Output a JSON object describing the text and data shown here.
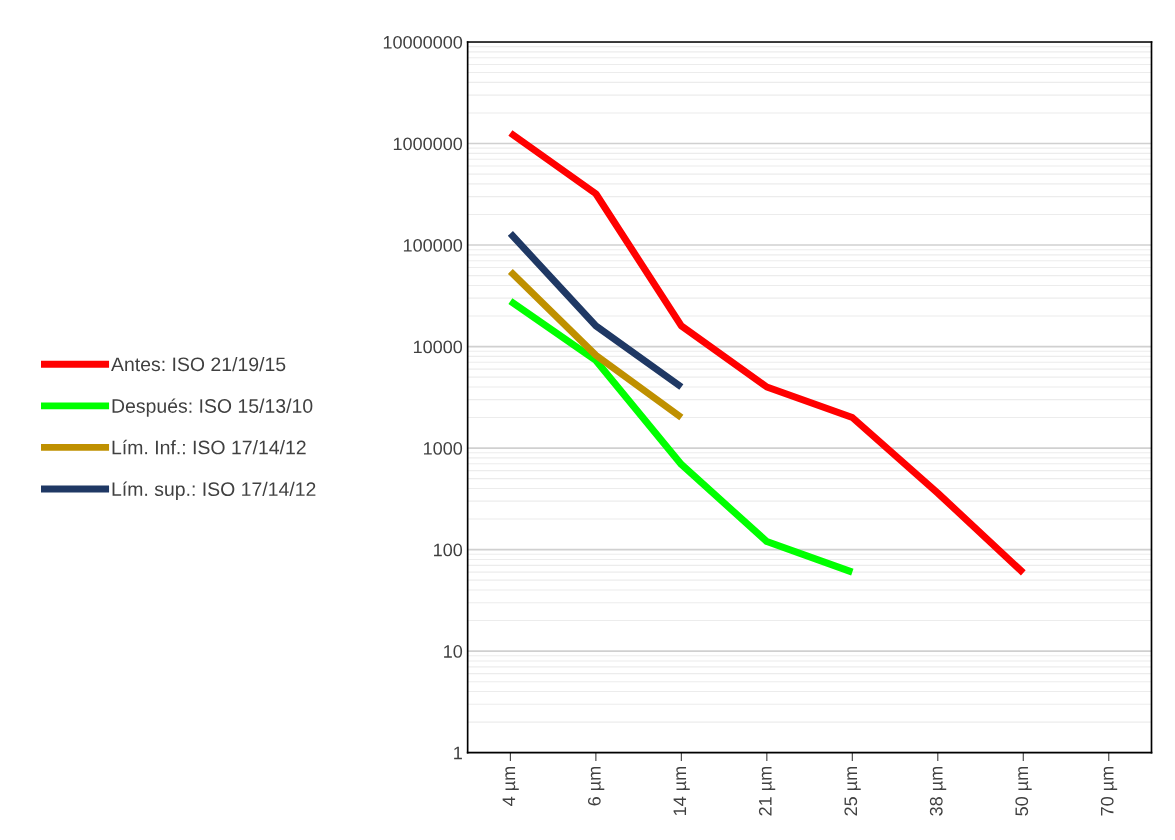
{
  "chart_data": {
    "type": "line",
    "categories": [
      "4 µm",
      "6 µm",
      "14 µm",
      "21 µm",
      "25 µm",
      "38 µm",
      "50 µm",
      "70 µm"
    ],
    "series": [
      {
        "name": "Antes: ISO 21/19/15",
        "color": "#ff0000",
        "values": [
          1270000,
          320000,
          16000,
          4000,
          2000,
          360,
          59,
          null
        ]
      },
      {
        "name": "Después: ISO 15/13/10",
        "color": "#00ff00",
        "values": [
          28000,
          7300,
          690,
          120,
          60,
          null,
          null,
          null
        ]
      },
      {
        "name": "Lím. Inf.: ISO 17/14/12",
        "color": "#bf9000",
        "values": [
          55000,
          8200,
          2000,
          null,
          null,
          null,
          null,
          null
        ]
      },
      {
        "name": "Lím. sup.: ISO 17/14/12",
        "color": "#1f3864",
        "values": [
          130000,
          16000,
          4000,
          null,
          null,
          null,
          null,
          null
        ]
      }
    ],
    "log": "y",
    "ylim": [
      1,
      10000000
    ],
    "yticks": [
      1,
      10,
      100,
      1000,
      10000,
      100000,
      1000000,
      10000000
    ],
    "grid": "y",
    "legend": "left",
    "marker": "none",
    "line_style": "solid"
  }
}
